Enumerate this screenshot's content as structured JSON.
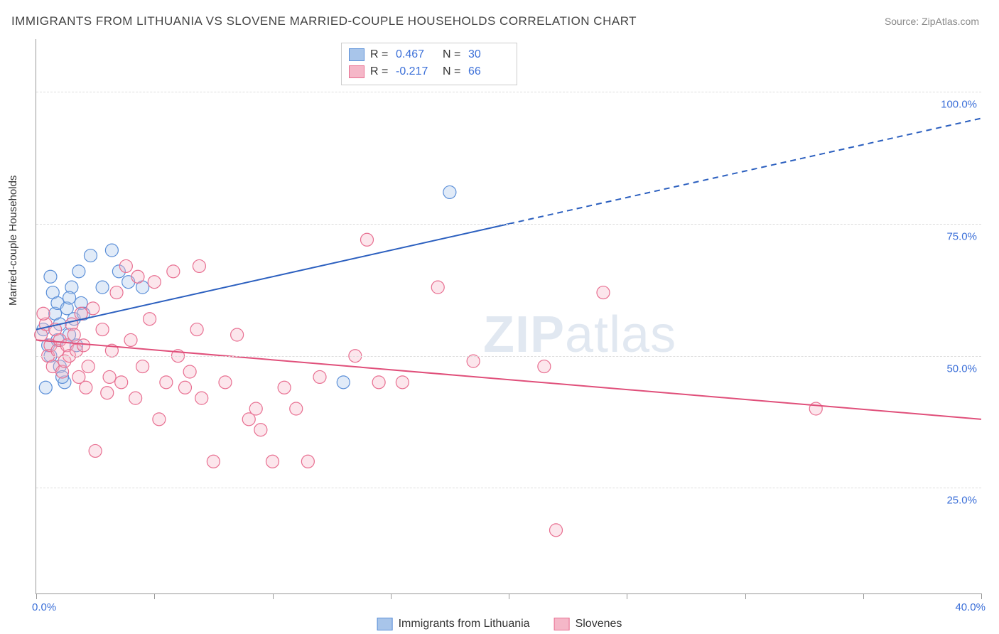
{
  "title": "IMMIGRANTS FROM LITHUANIA VS SLOVENE MARRIED-COUPLE HOUSEHOLDS CORRELATION CHART",
  "source": "Source: ZipAtlas.com",
  "ylabel": "Married-couple Households",
  "watermark_bold": "ZIP",
  "watermark_rest": "atlas",
  "chart": {
    "type": "scatter-correlation",
    "background_color": "#ffffff",
    "grid_color": "#dddddd",
    "axis_color": "#999999",
    "xlim": [
      0,
      40
    ],
    "ylim": [
      5,
      110
    ],
    "ytick_values": [
      25,
      50,
      75,
      100
    ],
    "ytick_labels": [
      "25.0%",
      "50.0%",
      "75.0%",
      "100.0%"
    ],
    "xtick_values": [
      0,
      5,
      10,
      15,
      20,
      25,
      30,
      35,
      40
    ],
    "xtick_label_left": "0.0%",
    "xtick_label_right": "40.0%",
    "label_color": "#3b6fd8",
    "label_fontsize": 15,
    "marker_radius": 9,
    "marker_fill_opacity": 0.35,
    "marker_stroke_width": 1.2,
    "series": [
      {
        "name": "Immigrants from Lithuania",
        "color": "#5b8fd8",
        "fill": "#a8c5ea",
        "r_value": "0.467",
        "n_value": "30",
        "trend": {
          "x1": 0,
          "y1": 55,
          "x2_solid": 20,
          "y2_solid": 75,
          "x2_dash": 40,
          "y2_dash": 95,
          "stroke": "#2b5fbf",
          "width": 2
        },
        "points": [
          [
            0.3,
            55
          ],
          [
            0.5,
            52
          ],
          [
            0.6,
            50
          ],
          [
            0.7,
            62
          ],
          [
            0.8,
            58
          ],
          [
            0.9,
            60
          ],
          [
            1.0,
            56
          ],
          [
            1.0,
            48
          ],
          [
            1.2,
            45
          ],
          [
            1.3,
            59
          ],
          [
            1.4,
            54
          ],
          [
            1.5,
            63
          ],
          [
            1.6,
            57
          ],
          [
            1.7,
            52
          ],
          [
            1.8,
            66
          ],
          [
            1.9,
            60
          ],
          [
            2.0,
            58
          ],
          [
            2.3,
            69
          ],
          [
            2.8,
            63
          ],
          [
            3.2,
            70
          ],
          [
            3.5,
            66
          ],
          [
            3.9,
            64
          ],
          [
            0.4,
            44
          ],
          [
            1.1,
            46
          ],
          [
            0.6,
            65
          ],
          [
            0.9,
            53
          ],
          [
            4.5,
            63
          ],
          [
            13.0,
            45
          ],
          [
            17.5,
            81
          ],
          [
            1.4,
            61
          ]
        ]
      },
      {
        "name": "Slovenes",
        "color": "#e86f91",
        "fill": "#f5b7c8",
        "r_value": "-0.217",
        "n_value": "66",
        "trend": {
          "x1": 0,
          "y1": 53,
          "x2_solid": 40,
          "y2_solid": 38,
          "stroke": "#e04f7a",
          "width": 2
        },
        "points": [
          [
            0.2,
            54
          ],
          [
            0.4,
            56
          ],
          [
            0.5,
            50
          ],
          [
            0.6,
            52
          ],
          [
            0.7,
            48
          ],
          [
            0.8,
            55
          ],
          [
            0.9,
            51
          ],
          [
            1.0,
            53
          ],
          [
            1.1,
            47
          ],
          [
            1.2,
            49
          ],
          [
            1.3,
            52
          ],
          [
            1.4,
            50
          ],
          [
            1.5,
            56
          ],
          [
            1.6,
            54
          ],
          [
            1.7,
            51
          ],
          [
            1.8,
            46
          ],
          [
            2.0,
            52
          ],
          [
            2.2,
            48
          ],
          [
            2.4,
            59
          ],
          [
            2.5,
            32
          ],
          [
            2.8,
            55
          ],
          [
            3.0,
            43
          ],
          [
            3.2,
            51
          ],
          [
            3.4,
            62
          ],
          [
            3.6,
            45
          ],
          [
            3.8,
            67
          ],
          [
            4.0,
            53
          ],
          [
            4.3,
            65
          ],
          [
            4.5,
            48
          ],
          [
            4.8,
            57
          ],
          [
            5.0,
            64
          ],
          [
            5.5,
            45
          ],
          [
            5.8,
            66
          ],
          [
            6.0,
            50
          ],
          [
            6.3,
            44
          ],
          [
            6.5,
            47
          ],
          [
            6.8,
            55
          ],
          [
            7.0,
            42
          ],
          [
            7.5,
            30
          ],
          [
            8.0,
            45
          ],
          [
            8.5,
            54
          ],
          [
            9.0,
            38
          ],
          [
            9.3,
            40
          ],
          [
            9.5,
            36
          ],
          [
            10.0,
            30
          ],
          [
            10.5,
            44
          ],
          [
            11.0,
            40
          ],
          [
            11.5,
            30
          ],
          [
            12.0,
            46
          ],
          [
            13.5,
            50
          ],
          [
            14.0,
            72
          ],
          [
            14.5,
            45
          ],
          [
            15.5,
            45
          ],
          [
            17.0,
            63
          ],
          [
            18.5,
            49
          ],
          [
            21.5,
            48
          ],
          [
            22.0,
            17
          ],
          [
            24.0,
            62
          ],
          [
            33.0,
            40
          ],
          [
            2.1,
            44
          ],
          [
            3.1,
            46
          ],
          [
            4.2,
            42
          ],
          [
            5.2,
            38
          ],
          [
            6.9,
            67
          ],
          [
            1.9,
            58
          ],
          [
            0.3,
            58
          ]
        ]
      }
    ]
  },
  "legend_bottom": [
    {
      "label": "Immigrants from Lithuania",
      "fill": "#a8c5ea",
      "stroke": "#5b8fd8"
    },
    {
      "label": "Slovenes",
      "fill": "#f5b7c8",
      "stroke": "#e86f91"
    }
  ]
}
